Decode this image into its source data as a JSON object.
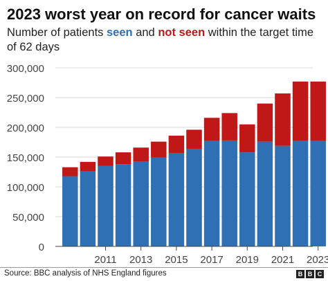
{
  "title": "2023 worst year on record for cancer waits",
  "subtitle": {
    "part1": "Number of patients ",
    "seen": "seen",
    "part2": " and ",
    "not_seen": "not seen",
    "part3": " within the target time of 62 days"
  },
  "source": "Source: BBC analysis of NHS England figures",
  "logo": [
    "B",
    "B",
    "C"
  ],
  "colors": {
    "seen": "#2f6fb3",
    "not_seen": "#c01717"
  },
  "chart_data": {
    "type": "bar",
    "stacked": true,
    "title": "2023 worst year on record for cancer waits",
    "subtitle": "Number of patients seen and not seen within the target time of 62 days",
    "xlabel": "",
    "ylabel": "",
    "categories": [
      2009,
      2010,
      2011,
      2012,
      2013,
      2014,
      2015,
      2016,
      2017,
      2018,
      2019,
      2020,
      2021,
      2022,
      2023
    ],
    "x_tick_labels": [
      "2011",
      "2013",
      "2015",
      "2017",
      "2019",
      "2021",
      "2023"
    ],
    "series": [
      {
        "name": "seen",
        "color": "#2f6fb3",
        "values": [
          118000,
          126000,
          135000,
          138000,
          143000,
          149000,
          157000,
          164000,
          177000,
          178000,
          158000,
          176000,
          169000,
          177000,
          177000
        ]
      },
      {
        "name": "not seen",
        "color": "#c01717",
        "values": [
          15000,
          16000,
          16000,
          20000,
          23000,
          27000,
          29000,
          32000,
          39000,
          46000,
          47000,
          64000,
          88000,
          100000,
          100000
        ]
      }
    ],
    "ylim": [
      0,
      300000
    ],
    "y_ticks": [
      0,
      50000,
      100000,
      150000,
      200000,
      250000,
      300000
    ],
    "y_tick_labels": [
      "0",
      "50,000",
      "100,000",
      "150,000",
      "200,000",
      "250,000",
      "300,000"
    ],
    "grid": true,
    "legend": "none"
  }
}
